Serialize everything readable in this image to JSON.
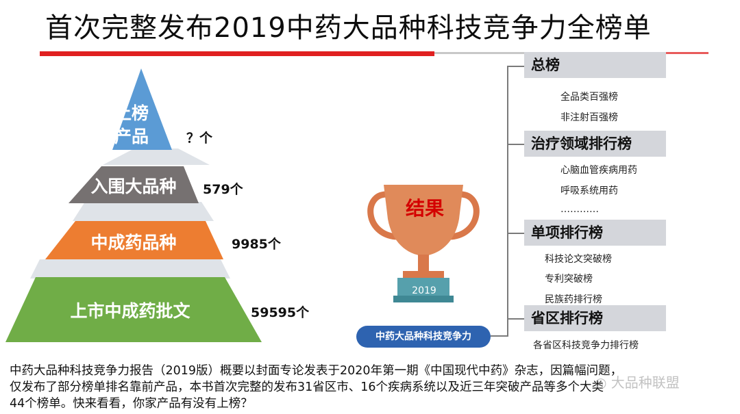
{
  "title": "首次完整发布2019中药大品种科技竞争力全榜单",
  "pyramid": {
    "levels": [
      {
        "label_line1": "上榜",
        "label_line2": "产品",
        "count": "？个",
        "color": "#5b9bd5"
      },
      {
        "label": "入围大品种",
        "count": "579个",
        "color": "#767171"
      },
      {
        "label": "中成药品种",
        "count": "9985个",
        "color": "#ed7d31"
      },
      {
        "label": "上市中成药批文",
        "count": "59595个",
        "color": "#70ad47"
      }
    ]
  },
  "trophy": {
    "result_label": "结果",
    "year": "2019",
    "caption": "中药大品种科技竞争力"
  },
  "categories": [
    {
      "name": "总榜",
      "items": [
        "全品类百强榜",
        "非注射百强榜"
      ]
    },
    {
      "name": "治疗领域排行榜",
      "items": [
        "心脑血管疾病用药",
        "呼吸系统用药",
        "…………"
      ]
    },
    {
      "name": "单项排行榜",
      "items": [
        "科技论文突破榜",
        "专利突破榜",
        "民族药排行榜"
      ]
    },
    {
      "name": "省区排行榜",
      "items": [
        "各省区科技竞争力排行榜"
      ]
    }
  ],
  "paragraph": {
    "line1": "中药大品种科技竞争力报告（2019版）概要以封面专论发表于2020年第一期《中国现代中药》杂志，因篇幅问题，",
    "line2": "仅发布了部分榜单排名靠前产品，本书首次完整的发布31省区市、16个疾病系统以及近三年突破产品等多个大类",
    "line3": "44个榜单。快来看看，你家产品有没有上榜？"
  },
  "watermark": "◎ 大品种联盟"
}
